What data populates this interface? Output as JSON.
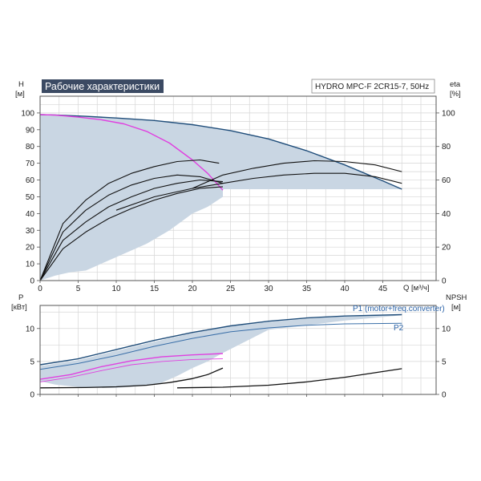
{
  "chart_data": [
    {
      "type": "line",
      "title": "Рабочие характеристики",
      "model": "HYDRO MPC-F 2CR15-7, 50Hz",
      "xlabel": "Q [м³/ч]",
      "ylabel_left_letter": "H",
      "ylabel_left_unit": "[м]",
      "ylabel_right_letter": "eta",
      "ylabel_right_unit": "[%]",
      "xlim": [
        0,
        52
      ],
      "ylim": [
        0,
        110
      ],
      "eta_lim": [
        0,
        110
      ],
      "x_ticks": [
        0,
        5,
        10,
        15,
        20,
        25,
        30,
        35,
        40,
        45
      ],
      "y_ticks": [
        0,
        10,
        20,
        30,
        40,
        50,
        60,
        70,
        80,
        90,
        100
      ],
      "eta_ticks": [
        0,
        20,
        40,
        60,
        80,
        100
      ],
      "grid": true,
      "colors": {
        "curve_main": "#1f4d7a",
        "curve_single": "#e040e0",
        "area_fill": "#c9d6e3",
        "eta_curve": "#111111"
      },
      "series": [
        {
          "kind": "head_area",
          "x": [
            0,
            2,
            6,
            10,
            15,
            20,
            25,
            30,
            35,
            40,
            45,
            47.5,
            47.5,
            40,
            30,
            24,
            24,
            22,
            20,
            17,
            14,
            10,
            6,
            4,
            2,
            0
          ],
          "y": [
            99,
            98.8,
            98,
            97,
            95.5,
            93,
            89.5,
            84.5,
            77.5,
            69,
            59.5,
            54.5,
            54.5,
            54.5,
            54.5,
            54.5,
            50,
            44,
            40,
            30,
            22,
            14,
            6,
            5,
            3,
            0
          ]
        },
        {
          "kind": "head_max",
          "x": [
            0,
            2,
            6,
            10,
            15,
            20,
            25,
            30,
            35,
            40,
            45,
            47.5
          ],
          "y": [
            99,
            98.8,
            98,
            97,
            95.5,
            93,
            89.5,
            84.5,
            77.5,
            69,
            59.5,
            54.5
          ]
        },
        {
          "kind": "head_one_pump",
          "x": [
            0,
            2,
            5,
            8,
            11,
            14,
            17,
            20,
            22,
            24
          ],
          "y": [
            99,
            98.7,
            97.5,
            96,
            93.5,
            89,
            82,
            72,
            64,
            54
          ]
        },
        {
          "kind": "eta",
          "x": [
            0,
            3,
            6,
            9,
            12,
            15,
            18,
            21,
            23.5
          ],
          "y": [
            0,
            34,
            48,
            58,
            64,
            68,
            71,
            72,
            70
          ]
        },
        {
          "kind": "eta",
          "x": [
            0,
            3,
            6,
            9,
            12,
            15,
            18,
            21,
            24
          ],
          "y": [
            0,
            29,
            42,
            51,
            57,
            61,
            63,
            62,
            58
          ]
        },
        {
          "kind": "eta",
          "x": [
            0,
            3,
            6,
            9,
            12,
            15,
            18,
            21,
            24
          ],
          "y": [
            0,
            24,
            35,
            44,
            50,
            55,
            58,
            60,
            59
          ]
        },
        {
          "kind": "eta",
          "x": [
            0,
            3,
            6,
            9,
            12,
            15,
            18,
            21,
            24
          ],
          "y": [
            0,
            19,
            29,
            37,
            43,
            48,
            52,
            55,
            56
          ]
        },
        {
          "kind": "eta",
          "x": [
            20,
            24,
            28,
            32,
            36,
            40,
            44,
            47.5
          ],
          "y": [
            55,
            63,
            67,
            70,
            71.5,
            71,
            69,
            65
          ]
        },
        {
          "kind": "eta",
          "x": [
            10,
            15,
            20,
            24,
            28,
            32,
            36,
            40,
            44,
            47.5
          ],
          "y": [
            42,
            50,
            55,
            58,
            61,
            63,
            64,
            64,
            62,
            58
          ]
        }
      ]
    },
    {
      "type": "line",
      "ylabel_left_letter": "P",
      "ylabel_left_unit": "[кВт]",
      "ylabel_right_letter": "NPSH",
      "ylabel_right_unit": "[м]",
      "xlim": [
        0,
        52
      ],
      "ylim": [
        0,
        13.5
      ],
      "y_ticks": [
        0,
        5,
        10
      ],
      "npsh_ticks": [
        0,
        5,
        10
      ],
      "legend": [
        {
          "name": "P1 (motor+freq.converter)"
        },
        {
          "name": "P2"
        }
      ],
      "series": [
        {
          "kind": "power_area",
          "x": [
            0,
            5,
            10,
            15,
            20,
            25,
            30,
            35,
            40,
            47.5,
            47.5,
            40,
            30,
            24,
            22,
            20,
            18,
            16,
            14,
            10,
            6,
            2,
            0
          ],
          "y": [
            4.3,
            5.2,
            6.6,
            8.0,
            9.3,
            10.3,
            11.0,
            11.5,
            11.8,
            12.0,
            12.0,
            11.2,
            9.8,
            6.3,
            5.0,
            4.0,
            2.8,
            1.8,
            1.3,
            1.0,
            1.0,
            1.5,
            2.0
          ]
        },
        {
          "kind": "p1_max",
          "name": "P1 (motor+freq.converter)",
          "x": [
            0,
            5,
            10,
            15,
            20,
            25,
            30,
            35,
            40,
            47.5
          ],
          "y": [
            4.5,
            5.4,
            6.8,
            8.2,
            9.4,
            10.4,
            11.1,
            11.6,
            11.9,
            12.1
          ]
        },
        {
          "kind": "p2_max",
          "name": "P2",
          "x": [
            0,
            5,
            10,
            15,
            20,
            25,
            30,
            35,
            40,
            47.5
          ],
          "y": [
            3.8,
            4.7,
            5.9,
            7.3,
            8.5,
            9.5,
            10.1,
            10.5,
            10.7,
            10.8
          ]
        },
        {
          "kind": "p1_one_pump",
          "x": [
            0,
            4,
            8,
            12,
            16,
            20,
            24
          ],
          "y": [
            2.3,
            3.0,
            4.2,
            5.1,
            5.7,
            6.0,
            6.2
          ]
        },
        {
          "kind": "p2_one_pump",
          "x": [
            0,
            4,
            8,
            12,
            16,
            20,
            24
          ],
          "y": [
            1.9,
            2.6,
            3.6,
            4.5,
            5.0,
            5.3,
            5.4
          ]
        },
        {
          "kind": "npsh",
          "x": [
            0,
            6,
            10,
            14,
            17,
            20,
            22,
            24
          ],
          "y": [
            1.0,
            1.05,
            1.15,
            1.4,
            1.8,
            2.4,
            3.0,
            4.0
          ]
        },
        {
          "kind": "npsh",
          "x": [
            18,
            24,
            30,
            35,
            40,
            44,
            47.5
          ],
          "y": [
            1.0,
            1.1,
            1.4,
            1.9,
            2.6,
            3.3,
            3.9
          ]
        }
      ]
    }
  ]
}
